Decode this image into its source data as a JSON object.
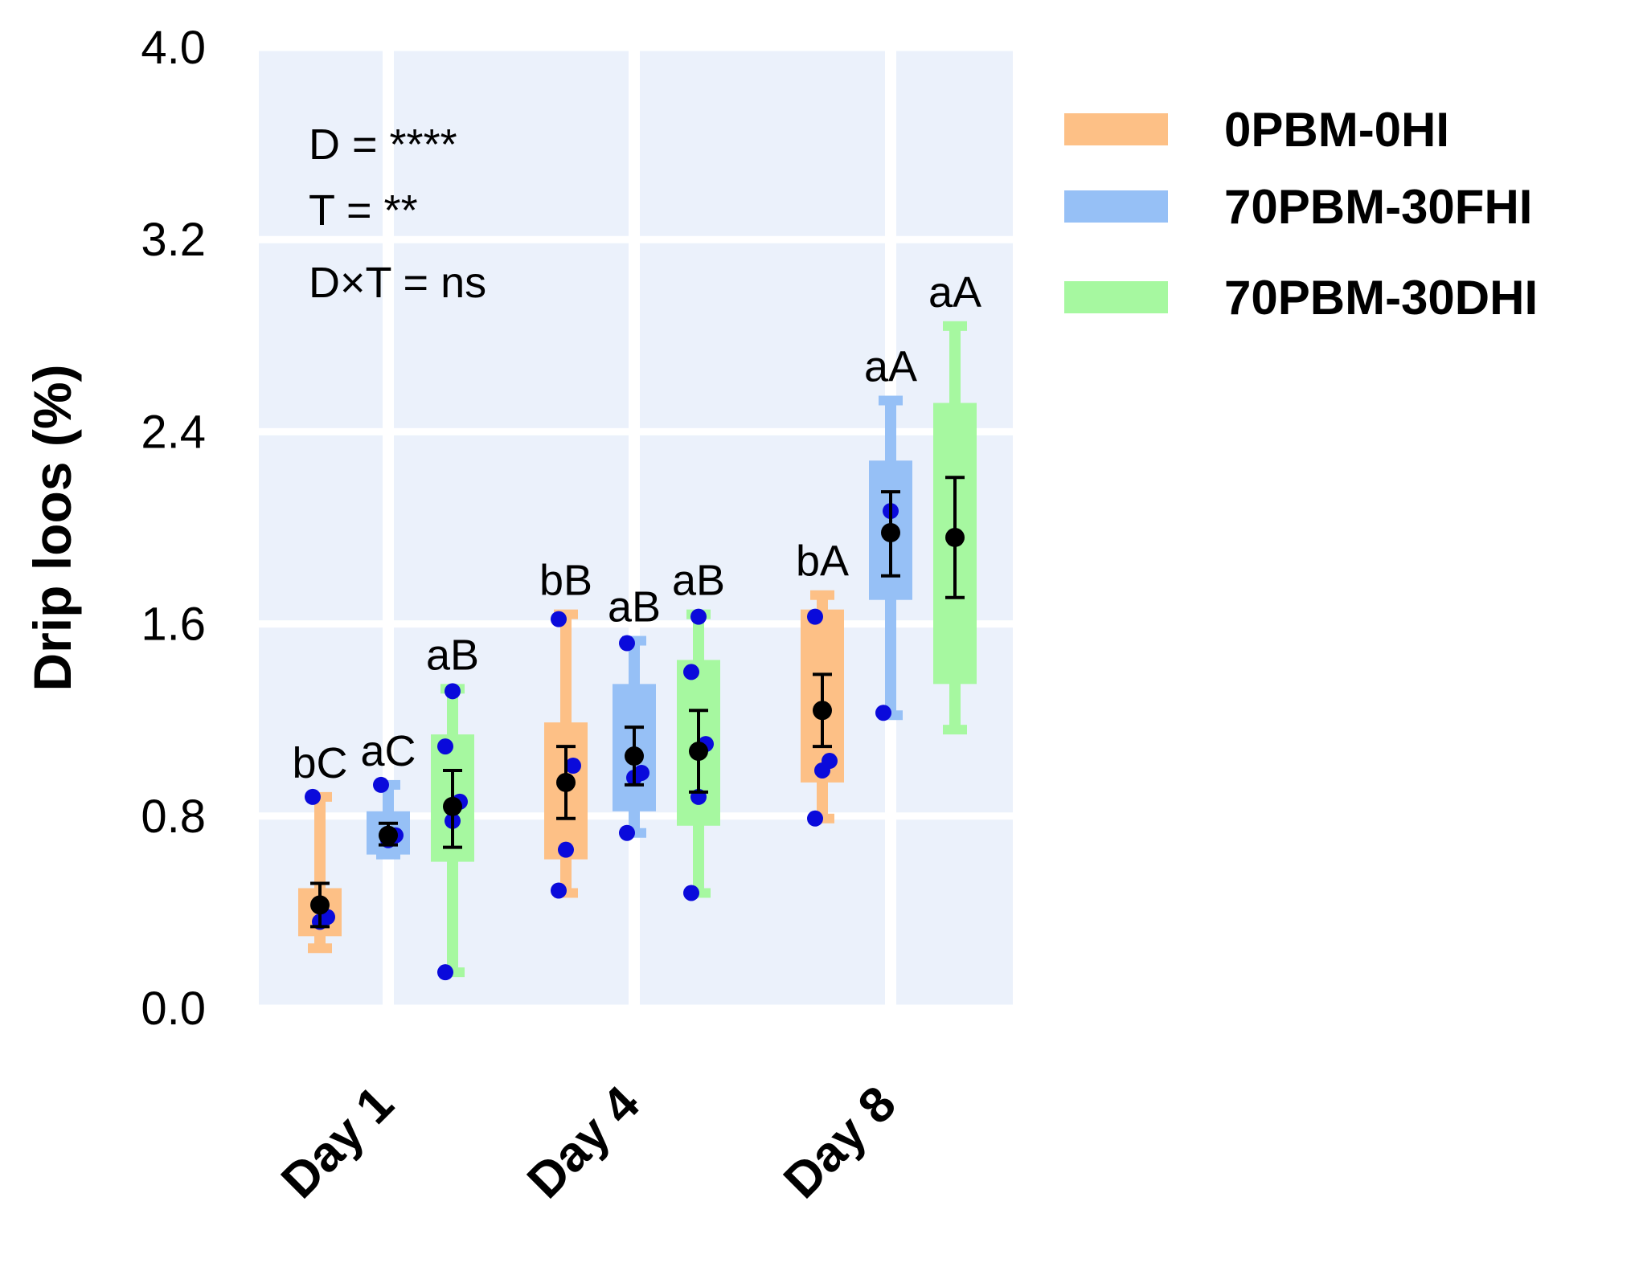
{
  "chart_data": {
    "type": "box",
    "ylabel": "Drip loos (%)",
    "xlabel": "",
    "ylim": [
      0.0,
      4.0
    ],
    "yticks": [
      "0.0",
      "0.8",
      "1.6",
      "2.4",
      "3.2",
      "4.0"
    ],
    "categories": [
      "Day 1",
      "Day 4",
      "Day 8"
    ],
    "grid": true,
    "legend_position": "right",
    "annotations": [
      "D = ****",
      "T = **",
      "D×T = ns"
    ],
    "colors": {
      "background": "#ebf1fb",
      "grid": "#ffffff",
      "points": "#0a0adb",
      "mean": "#000000"
    },
    "series": [
      {
        "name": "0PBM-0HI",
        "color": "#fdc086",
        "boxes": [
          {
            "min": 0.25,
            "q1": 0.3,
            "q3": 0.5,
            "max": 0.88,
            "mean": 0.43,
            "err_low": 0.34,
            "err_high": 0.52,
            "label": "bC",
            "points": [
              0.88,
              0.36,
              0.38
            ]
          },
          {
            "min": 0.48,
            "q1": 0.62,
            "q3": 1.19,
            "max": 1.64,
            "mean": 0.94,
            "err_low": 0.79,
            "err_high": 1.09,
            "label": "bB",
            "points": [
              0.49,
              0.66,
              1.01,
              1.62
            ]
          },
          {
            "min": 0.79,
            "q1": 0.94,
            "q3": 1.66,
            "max": 1.72,
            "mean": 1.24,
            "err_low": 1.09,
            "err_high": 1.39,
            "label": "bA",
            "points": [
              0.79,
              0.99,
              1.03,
              1.63
            ]
          }
        ]
      },
      {
        "name": "70PBM-30FHI",
        "color": "#96c0f6",
        "boxes": [
          {
            "min": 0.64,
            "q1": 0.64,
            "q3": 0.82,
            "max": 0.93,
            "mean": 0.72,
            "err_low": 0.68,
            "err_high": 0.77,
            "label": "aC",
            "points": [
              0.93,
              0.7,
              0.72
            ]
          },
          {
            "min": 0.73,
            "q1": 0.82,
            "q3": 1.35,
            "max": 1.53,
            "mean": 1.05,
            "err_low": 0.93,
            "err_high": 1.17,
            "label": "aB",
            "points": [
              0.73,
              0.96,
              0.98,
              1.52
            ]
          },
          {
            "min": 1.22,
            "q1": 1.7,
            "q3": 2.28,
            "max": 2.53,
            "mean": 1.98,
            "err_low": 1.8,
            "err_high": 2.15,
            "label": "aA",
            "points": [
              1.23,
              2.07
            ]
          }
        ]
      },
      {
        "name": "70PBM-30DHI",
        "color": "#a6f8a0",
        "boxes": [
          {
            "min": 0.15,
            "q1": 0.61,
            "q3": 1.14,
            "max": 1.33,
            "mean": 0.84,
            "err_low": 0.67,
            "err_high": 0.99,
            "label": "aB",
            "points": [
              0.15,
              0.78,
              0.86,
              1.09,
              1.32
            ]
          },
          {
            "min": 0.48,
            "q1": 0.76,
            "q3": 1.45,
            "max": 1.64,
            "mean": 1.07,
            "err_low": 0.9,
            "err_high": 1.24,
            "label": "aB",
            "points": [
              0.48,
              0.88,
              1.1,
              1.4,
              1.63
            ]
          },
          {
            "min": 1.16,
            "q1": 1.35,
            "q3": 2.52,
            "max": 2.84,
            "mean": 1.96,
            "err_low": 1.71,
            "err_high": 2.21,
            "label": "aA",
            "points": []
          }
        ]
      }
    ]
  }
}
